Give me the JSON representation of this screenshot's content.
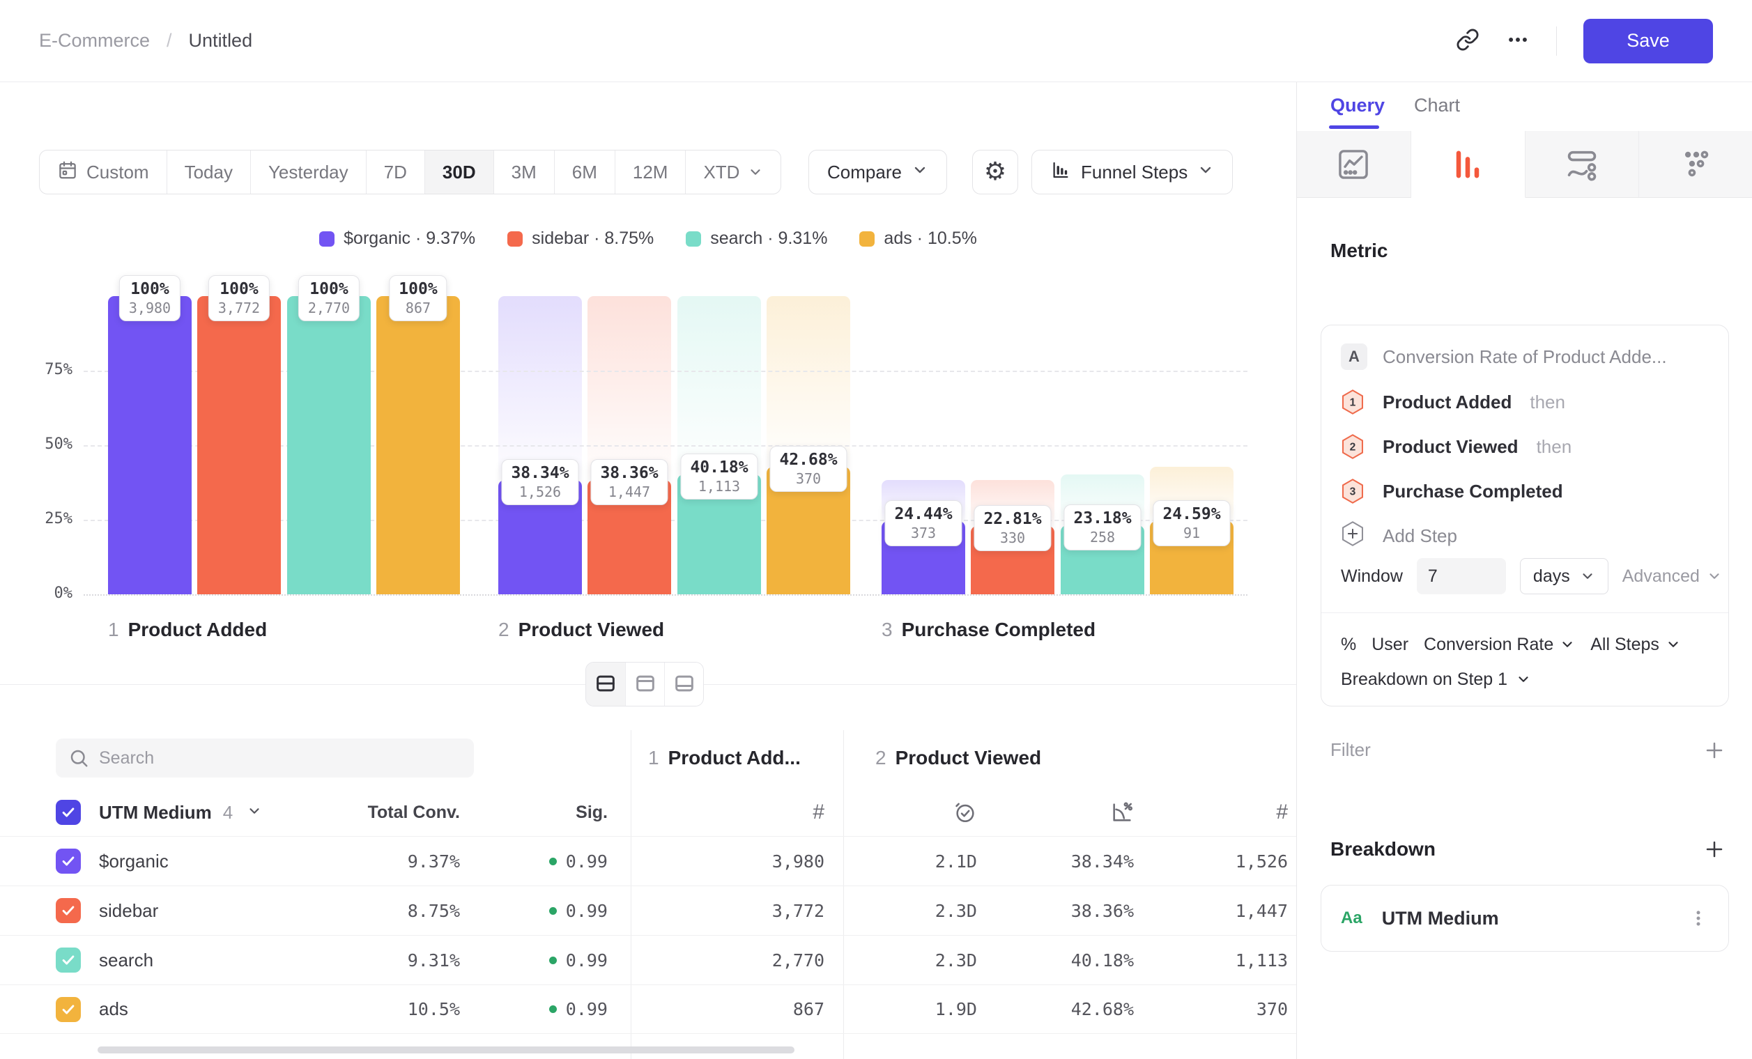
{
  "header": {
    "project": "E-Commerce",
    "sep": "/",
    "title": "Untitled",
    "save_label": "Save"
  },
  "toolbar": {
    "ranges": [
      {
        "label": "Custom",
        "icon": "calendar",
        "active": false,
        "chevron": false
      },
      {
        "label": "Today",
        "icon": "",
        "active": false,
        "chevron": false
      },
      {
        "label": "Yesterday",
        "icon": "",
        "active": false,
        "chevron": false
      },
      {
        "label": "7D",
        "icon": "",
        "active": false,
        "chevron": false
      },
      {
        "label": "30D",
        "icon": "",
        "active": true,
        "chevron": false
      },
      {
        "label": "3M",
        "icon": "",
        "active": false,
        "chevron": false
      },
      {
        "label": "6M",
        "icon": "",
        "active": false,
        "chevron": false
      },
      {
        "label": "12M",
        "icon": "",
        "active": false,
        "chevron": false
      },
      {
        "label": "XTD",
        "icon": "",
        "active": false,
        "chevron": true
      }
    ],
    "compare_label": "Compare",
    "chart_type_label": "Funnel Steps"
  },
  "chart_data": {
    "type": "bar",
    "subtype": "funnel-conversion",
    "title": "",
    "steps": [
      {
        "index": "1",
        "label": "Product Added"
      },
      {
        "index": "2",
        "label": "Product Viewed"
      },
      {
        "index": "3",
        "label": "Purchase Completed"
      }
    ],
    "y_ticks": [
      "75%",
      "50%",
      "25%",
      "0%"
    ],
    "ylim": [
      0,
      100
    ],
    "grid": "dashed-horizontal",
    "legend_position": "top-center",
    "series": [
      {
        "name": "$organic",
        "color": "#7254F3",
        "legend": "$organic · 9.37%",
        "pct": [
          100,
          38.34,
          24.44
        ],
        "pct_labels": [
          "100%",
          "38.34%",
          "24.44%"
        ],
        "counts": [
          "3,980",
          "1,526",
          "373"
        ]
      },
      {
        "name": "sidebar",
        "color": "#F4694C",
        "legend": "sidebar · 8.75%",
        "pct": [
          100,
          38.36,
          22.81
        ],
        "pct_labels": [
          "100%",
          "38.36%",
          "22.81%"
        ],
        "counts": [
          "3,772",
          "1,447",
          "330"
        ]
      },
      {
        "name": "search",
        "color": "#79DCC8",
        "legend": "search · 9.31%",
        "pct": [
          100,
          40.18,
          23.18
        ],
        "pct_labels": [
          "100%",
          "40.18%",
          "23.18%"
        ],
        "counts": [
          "2,770",
          "1,113",
          "258"
        ]
      },
      {
        "name": "ads",
        "color": "#F2B33D",
        "legend": "ads · 10.5%",
        "pct": [
          100,
          42.68,
          24.59
        ],
        "pct_labels": [
          "100%",
          "42.68%",
          "24.59%"
        ],
        "counts": [
          "867",
          "370",
          "91"
        ]
      }
    ]
  },
  "view_toggle": {
    "active": 0,
    "options": [
      "split-horizontal",
      "panel-top",
      "panel-bottom"
    ]
  },
  "table": {
    "search_placeholder": "Search",
    "group_label": "UTM Medium",
    "group_count": "4",
    "col_total": "Total Conv.",
    "col_sig": "Sig.",
    "step_headers": [
      {
        "index": "1",
        "label": "Product Add..."
      },
      {
        "index": "2",
        "label": "Product Viewed"
      }
    ],
    "sub_icons": [
      "count",
      "avg-time",
      "conversion",
      "count"
    ],
    "rows": [
      {
        "name": "$organic",
        "color": "#7254F3",
        "total": "9.37%",
        "sig": "0.99",
        "values": [
          "3,980",
          "2.1D",
          "38.34%",
          "1,526"
        ]
      },
      {
        "name": "sidebar",
        "color": "#F4694C",
        "total": "8.75%",
        "sig": "0.99",
        "values": [
          "3,772",
          "2.3D",
          "38.36%",
          "1,447"
        ]
      },
      {
        "name": "search",
        "color": "#79DCC8",
        "total": "9.31%",
        "sig": "0.99",
        "values": [
          "2,770",
          "2.3D",
          "40.18%",
          "1,113"
        ]
      },
      {
        "name": "ads",
        "color": "#F2B33D",
        "total": "10.5%",
        "sig": "0.99",
        "values": [
          "867",
          "1.9D",
          "42.68%",
          "370"
        ]
      }
    ]
  },
  "sidebar": {
    "tabs": [
      {
        "label": "Query",
        "active": true
      },
      {
        "label": "Chart",
        "active": false
      }
    ],
    "chart_type_tabs": [
      {
        "name": "line-chart",
        "active": false
      },
      {
        "name": "funnel-bars",
        "active": true
      },
      {
        "name": "flow",
        "active": false
      },
      {
        "name": "scatter",
        "active": false
      }
    ],
    "metric_heading": "Metric",
    "metric": {
      "badge": "A",
      "title": "Conversion Rate of Product Adde...",
      "steps": [
        {
          "num": "1",
          "label": "Product Added",
          "suffix": "then"
        },
        {
          "num": "2",
          "label": "Product Viewed",
          "suffix": "then"
        },
        {
          "num": "3",
          "label": "Purchase Completed",
          "suffix": ""
        }
      ],
      "add_step_label": "Add Step",
      "window_label": "Window",
      "window_value": "7",
      "window_unit": "days",
      "advanced_label": "Advanced",
      "measure_symbol": "%",
      "measure_entity": "User",
      "measure_metric": "Conversion Rate",
      "measure_scope": "All Steps",
      "breakdown_on": "Breakdown on Step 1"
    },
    "filter_label": "Filter",
    "breakdown_label": "Breakdown",
    "breakdown_item": {
      "type_badge": "Aa",
      "label": "UTM Medium"
    }
  },
  "colors": {
    "accent": "#4F45E4",
    "funnel_tab_icon": "#F4583C",
    "sig_dot": "#2BA566",
    "string_badge": "#2BA566"
  }
}
